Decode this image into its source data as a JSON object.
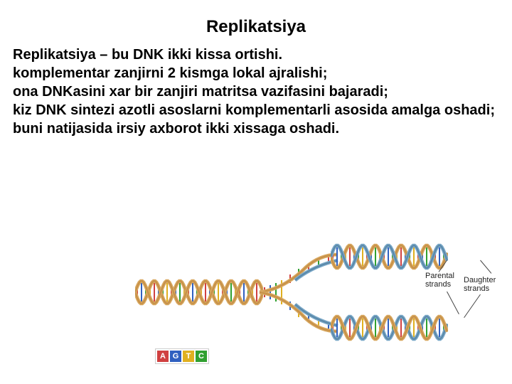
{
  "title": "Replikatsiya",
  "paragraphs": [
    "Replikatsiya  – bu DNK ikki kissa ortishi.",
    " komplementar zanjirni 2 kismga lokal ajralishi;",
    "ona DNKasini  xar bir zanjiri matritsa  vazifasini bajaradi;",
    "   kiz DNK sintezi azotli asoslarni   komplementarli asosida amalga oshadi;",
    " buni natijasida irsiy axborot ikki xissaga oshadi."
  ],
  "diagram": {
    "labels": {
      "parental": "Parental\nstrands",
      "daughter": "Daughter\nstrands"
    },
    "helix": {
      "strand_color_1": "#d8a860",
      "strand_color_2": "#c69048",
      "new_strand_color_1": "#7aa8c8",
      "new_strand_color_2": "#5a88a8",
      "rung_colors": [
        "#d04040",
        "#3060c0",
        "#30a030",
        "#e0b020"
      ]
    },
    "legend": {
      "letters": [
        "A",
        "G",
        "T",
        "C"
      ],
      "colors": [
        "#d04040",
        "#3060c0",
        "#e0b020",
        "#30a030"
      ]
    }
  }
}
